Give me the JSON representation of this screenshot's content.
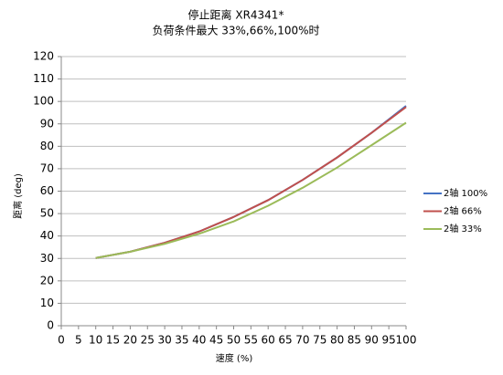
{
  "chart_data": {
    "type": "line",
    "title": "停止距离 XR4341*",
    "subtitle": "负荷条件最大 33%,66%,100%时",
    "x_label": "速度 (%)",
    "y_label": "距离 (deg)",
    "x": [
      10,
      20,
      30,
      40,
      50,
      60,
      70,
      80,
      90,
      100
    ],
    "series": [
      {
        "name": "2轴 100%",
        "color": "#4472c4",
        "values": [
          30.2,
          33,
          37,
          42,
          48.5,
          56,
          65,
          75,
          86,
          98
        ]
      },
      {
        "name": "2轴 66%",
        "color": "#c0504d",
        "values": [
          30.2,
          33,
          37,
          42,
          48.5,
          56,
          65,
          75,
          86,
          97.5
        ]
      },
      {
        "name": "2轴 33%",
        "color": "#9bbb59",
        "values": [
          30.2,
          33,
          36.5,
          41,
          46.5,
          53.5,
          61.5,
          70.5,
          80.5,
          90.5
        ]
      }
    ],
    "xlim": [
      0,
      100
    ],
    "xticks": [
      0,
      5,
      10,
      15,
      20,
      25,
      30,
      35,
      40,
      45,
      50,
      55,
      60,
      65,
      70,
      75,
      80,
      85,
      90,
      95,
      100
    ],
    "ylim": [
      0,
      120
    ],
    "yticks": [
      0,
      10,
      20,
      30,
      40,
      50,
      60,
      70,
      80,
      90,
      100,
      110,
      120
    ],
    "grid": true,
    "legend": "right"
  }
}
